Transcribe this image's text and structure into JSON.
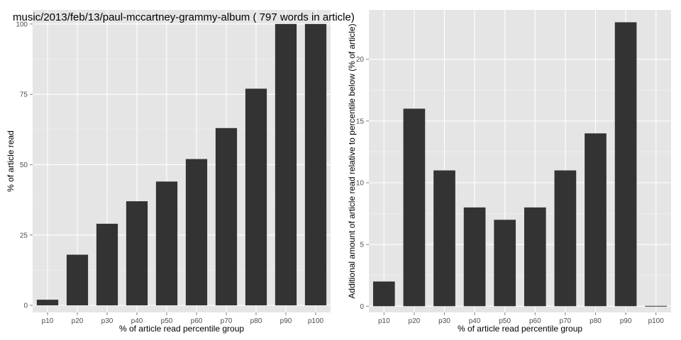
{
  "colors": {
    "panel_bg": "#e5e5e5",
    "grid_major": "#ffffff",
    "grid_minor": "#f2f2f2",
    "bar_fill": "#333333",
    "tick_mark": "#7f7f7f"
  },
  "chart_data": [
    {
      "type": "bar",
      "title": "music/2013/feb/13/paul-mccartney-grammy-album ( 797 words in article)",
      "xlabel": "% of article read percentile group",
      "ylabel": "% of article read",
      "categories": [
        "p10",
        "p20",
        "p30",
        "p40",
        "p50",
        "p60",
        "p70",
        "p80",
        "p90",
        "p100"
      ],
      "values": [
        2,
        18,
        29,
        37,
        44,
        52,
        63,
        77,
        100,
        100
      ],
      "ylim": [
        -2.5,
        105
      ],
      "yticks": [
        0,
        25,
        50,
        75,
        100
      ],
      "grid": true
    },
    {
      "type": "bar",
      "title": "",
      "xlabel": "% of article read percentile group",
      "ylabel": "Additional amount of article read relative to percentile below (% of article)",
      "categories": [
        "p10",
        "p20",
        "p30",
        "p40",
        "p50",
        "p60",
        "p70",
        "p80",
        "p90",
        "p100"
      ],
      "values": [
        2,
        16,
        11,
        8,
        7,
        8,
        11,
        14,
        23,
        0
      ],
      "ylim": [
        -0.5,
        24
      ],
      "yticks": [
        0,
        5,
        10,
        15,
        20
      ],
      "grid": true
    }
  ]
}
